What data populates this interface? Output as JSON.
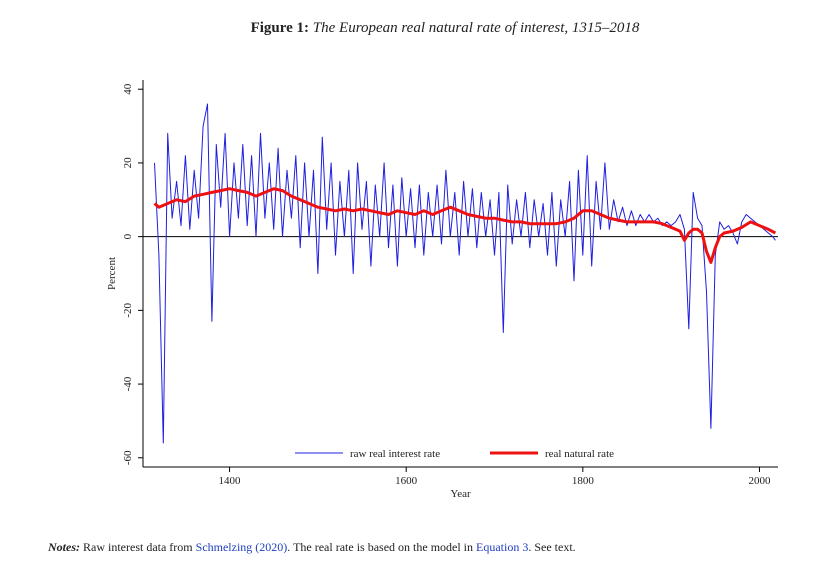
{
  "figure": {
    "label": "Figure 1:",
    "caption": "The European real natural rate of interest, 1315–2018"
  },
  "chart_data": {
    "type": "line",
    "xlabel": "Year",
    "ylabel": "Percent",
    "xlim": [
      1302,
      2021
    ],
    "ylim": [
      -62.5,
      42.5
    ],
    "xticks": [
      1400,
      1600,
      1800,
      2000
    ],
    "yticks": [
      -60,
      -40,
      -20,
      0,
      20,
      40
    ],
    "legend": "bottom",
    "series": [
      {
        "name": "raw real interest rate",
        "color": "#1f1fe0",
        "x": [
          1315,
          1320,
          1325,
          1330,
          1335,
          1340,
          1345,
          1350,
          1355,
          1360,
          1365,
          1370,
          1375,
          1380,
          1385,
          1390,
          1395,
          1400,
          1405,
          1410,
          1415,
          1420,
          1425,
          1430,
          1435,
          1440,
          1445,
          1450,
          1455,
          1460,
          1465,
          1470,
          1475,
          1480,
          1485,
          1490,
          1495,
          1500,
          1505,
          1510,
          1515,
          1520,
          1525,
          1530,
          1535,
          1540,
          1545,
          1550,
          1555,
          1560,
          1565,
          1570,
          1575,
          1580,
          1585,
          1590,
          1595,
          1600,
          1605,
          1610,
          1615,
          1620,
          1625,
          1630,
          1635,
          1640,
          1645,
          1650,
          1655,
          1660,
          1665,
          1670,
          1675,
          1680,
          1685,
          1690,
          1695,
          1700,
          1705,
          1710,
          1715,
          1720,
          1725,
          1730,
          1735,
          1740,
          1745,
          1750,
          1755,
          1760,
          1765,
          1770,
          1775,
          1780,
          1785,
          1790,
          1795,
          1800,
          1805,
          1810,
          1815,
          1820,
          1825,
          1830,
          1835,
          1840,
          1845,
          1850,
          1855,
          1860,
          1865,
          1870,
          1875,
          1880,
          1885,
          1890,
          1895,
          1900,
          1905,
          1910,
          1915,
          1920,
          1925,
          1930,
          1935,
          1940,
          1945,
          1950,
          1955,
          1960,
          1965,
          1970,
          1975,
          1980,
          1985,
          1990,
          1995,
          2000,
          2005,
          2010,
          2015,
          2018
        ],
        "values": [
          20,
          -5,
          -56,
          28,
          5,
          15,
          3,
          22,
          2,
          18,
          5,
          30,
          36,
          -23,
          25,
          8,
          28,
          0,
          20,
          5,
          25,
          3,
          22,
          0,
          28,
          5,
          20,
          2,
          24,
          0,
          18,
          5,
          22,
          -3,
          20,
          0,
          18,
          -10,
          27,
          2,
          20,
          -5,
          15,
          0,
          18,
          -10,
          20,
          2,
          15,
          -8,
          14,
          0,
          20,
          -3,
          14,
          -8,
          16,
          0,
          13,
          -3,
          14,
          -5,
          12,
          0,
          14,
          -2,
          18,
          0,
          12,
          -5,
          15,
          0,
          13,
          -3,
          12,
          0,
          10,
          -5,
          12,
          -26,
          14,
          -2,
          10,
          0,
          12,
          -3,
          10,
          0,
          9,
          -5,
          12,
          -8,
          10,
          0,
          15,
          -12,
          18,
          -5,
          22,
          -8,
          15,
          2,
          20,
          2,
          10,
          4,
          8,
          3,
          7,
          3,
          6,
          4,
          6,
          4,
          5,
          3,
          4,
          3,
          4,
          6,
          2,
          -25,
          12,
          5,
          3,
          -15,
          -52,
          -5,
          4,
          2,
          3,
          1,
          -2,
          4,
          6,
          5,
          4,
          3,
          2,
          1,
          0,
          -1
        ]
      },
      {
        "name": "real natural rate",
        "color": "#ee1111",
        "x": [
          1315,
          1320,
          1330,
          1340,
          1350,
          1360,
          1370,
          1380,
          1390,
          1400,
          1410,
          1420,
          1430,
          1440,
          1450,
          1460,
          1470,
          1480,
          1490,
          1500,
          1510,
          1520,
          1530,
          1540,
          1550,
          1560,
          1570,
          1580,
          1590,
          1600,
          1610,
          1620,
          1630,
          1640,
          1650,
          1660,
          1670,
          1680,
          1690,
          1700,
          1710,
          1720,
          1730,
          1740,
          1750,
          1760,
          1770,
          1780,
          1790,
          1800,
          1810,
          1820,
          1830,
          1840,
          1850,
          1860,
          1870,
          1880,
          1890,
          1900,
          1910,
          1915,
          1920,
          1925,
          1930,
          1935,
          1940,
          1945,
          1950,
          1955,
          1960,
          1970,
          1980,
          1990,
          2000,
          2010,
          2018
        ],
        "values": [
          9,
          8,
          9,
          10,
          9.5,
          11,
          11.5,
          12,
          12.5,
          13,
          12.5,
          12,
          11,
          12,
          13,
          12.5,
          11,
          10,
          9,
          8,
          7.5,
          7,
          7.5,
          7,
          7.5,
          7,
          6.5,
          6,
          7,
          6.5,
          6,
          7,
          6,
          7,
          8,
          7,
          6,
          5.5,
          5,
          5,
          4.5,
          4,
          4,
          3.5,
          3.5,
          3.5,
          3.5,
          4,
          5,
          7,
          7,
          6,
          5,
          4.5,
          4,
          4,
          4,
          4,
          3.5,
          2.5,
          1.5,
          -1,
          1,
          2,
          2,
          1,
          -4,
          -7,
          -3,
          0,
          1,
          1.5,
          2.5,
          4,
          3,
          2,
          1
        ]
      }
    ]
  },
  "notes": {
    "label": "Notes:",
    "part1": "Raw interest data from",
    "link1": "Schmelzing (2020)",
    "part2": ". The real rate is based on the model in",
    "link2": "Equation 3",
    "part3": ". See text."
  }
}
